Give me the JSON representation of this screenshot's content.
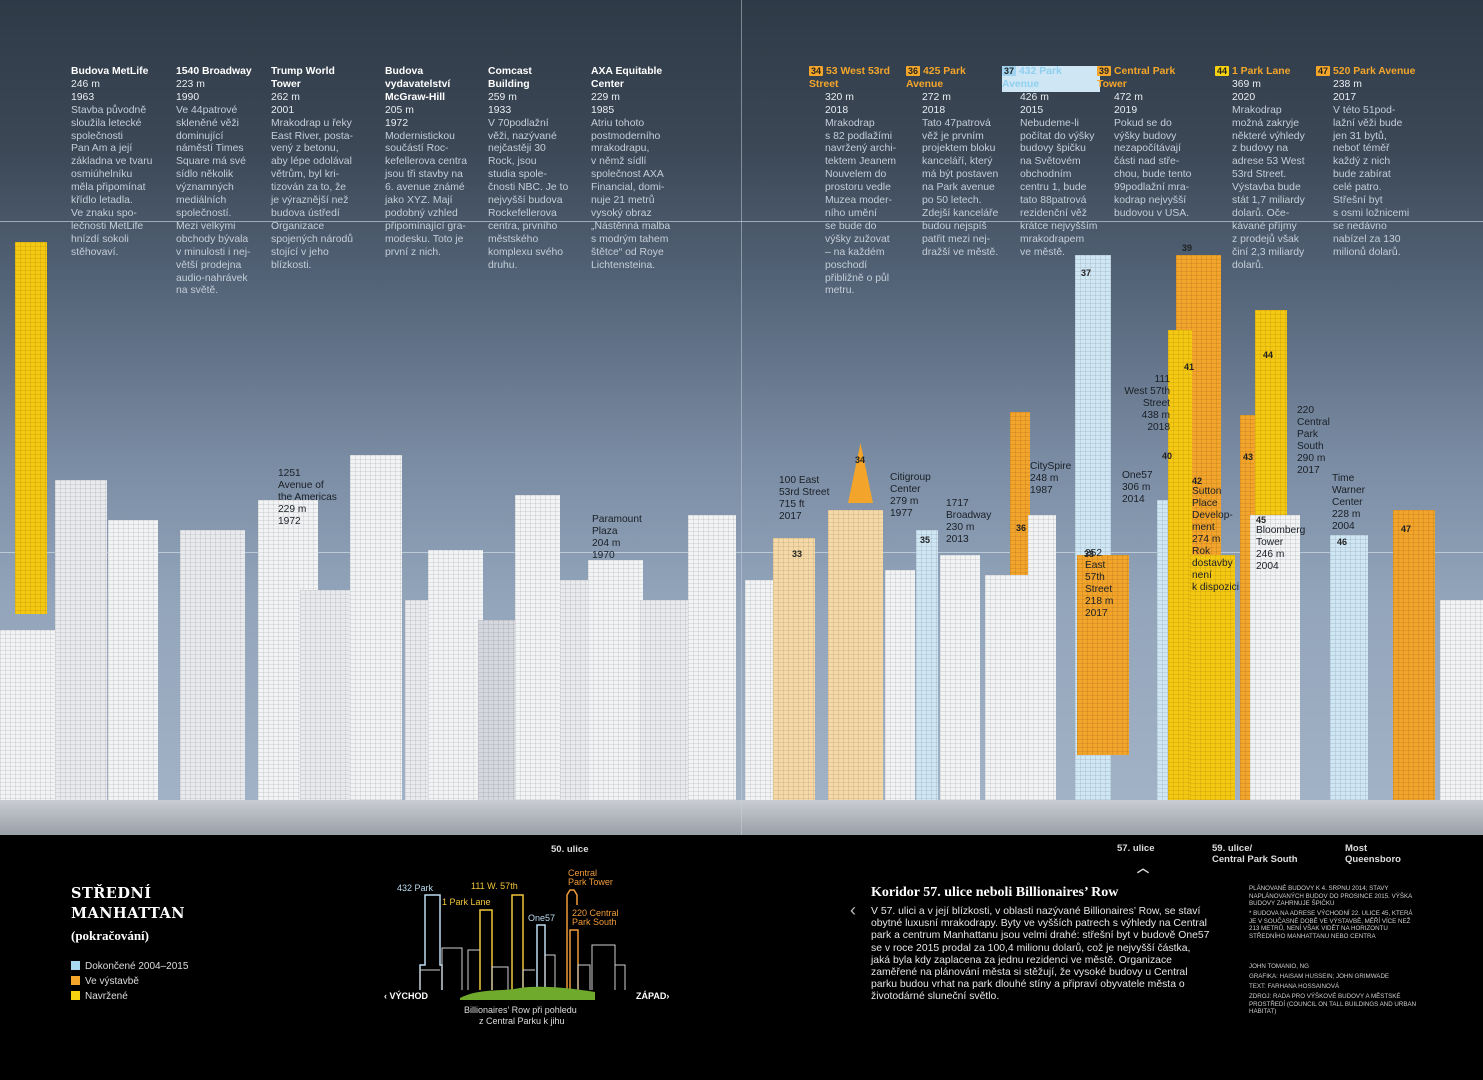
{
  "page": {
    "section_title": [
      "STŘEDNÍ",
      "MANHATTAN"
    ],
    "section_subtitle": "(pokračování)"
  },
  "legend": [
    {
      "label": "Dokončené 2004–2015",
      "color": "#a8d8f0"
    },
    {
      "label": "Ve výstavbě",
      "color": "#f4a62a"
    },
    {
      "label": "Navržené",
      "color": "#f6d10f"
    }
  ],
  "existing_buildings": [
    {
      "name": "Budova MetLife",
      "height": "246 m",
      "year": "1963",
      "text": [
        "Stavba původně",
        "sloužila letecké",
        "společnosti",
        "Pan Am a její",
        "základna ve tvaru",
        "osmiúhelníku",
        "měla připomínat",
        "křídlo letadla.",
        "Ve znaku spo-",
        "lečnosti MetLife",
        "hnízdí sokoli",
        "stěhovaví."
      ]
    },
    {
      "name": "1540 Broadway",
      "height": "223 m",
      "year": "1990",
      "text": [
        "Ve 44patrové",
        "skleněné věži",
        "dominující",
        "náměstí Times",
        "Square má své",
        "sídlo několik",
        "významných",
        "mediálních",
        "společností.",
        "Mezi velkými",
        "obchody bývala",
        "v minulosti i nej-",
        "větší prodejna",
        "audio-nahrávek",
        "na světě."
      ]
    },
    {
      "name": "Trump World Tower",
      "height": "262 m",
      "year": "2001",
      "text": [
        "Mrakodrap u řeky",
        "East River, posta-",
        "vený z betonu,",
        "aby lépe odolával",
        "větrům, byl kri-",
        "tizován za to, že",
        "je výraznější než",
        "budova ústředí",
        "Organizace",
        "spojených národů",
        "stojící v jeho",
        "blízkosti."
      ]
    },
    {
      "name": "Budova vydavatelství McGraw-Hill",
      "height": "205 m",
      "year": "1972",
      "text": [
        "Modernistickou",
        "součástí Roc-",
        "kefellerova centra",
        "jsou tři stavby na",
        "6. avenue známé",
        "jako XYZ. Mají",
        "podobný vzhled",
        "připomínající gra-",
        "modesku. Toto je",
        "první z nich."
      ]
    },
    {
      "name": "Comcast Building",
      "height": "259 m",
      "year": "1933",
      "text": [
        "V 70podlažní",
        "věži, nazývané",
        "nejčastěji 30",
        "Rock, jsou",
        "studia spole-",
        "čnosti NBC. Je to",
        "nejvyšší budova",
        "Rockefellerova",
        "centra, prvního",
        "městského",
        "komplexu svého",
        "druhu."
      ]
    },
    {
      "name": "AXA Equitable Center",
      "height": "229 m",
      "year": "1985",
      "text": [
        "Atriu tohoto",
        "postmoderního",
        "mrakodrapu,",
        "v němž sídlí",
        "společnost AXA",
        "Financial, domi-",
        "nuje 21 metrů",
        "vysoký obraz",
        "„Nástěnná malba",
        "s modrým tahem",
        "štětce“ od Roye",
        "Lichtensteina."
      ]
    }
  ],
  "new_buildings": [
    {
      "num": "34",
      "status": "construction",
      "name": "53 West 53rd Street",
      "height": "320 m",
      "year": "2018",
      "text": [
        "Mrakodrap",
        "s 82 podlažími",
        "navržený archi-",
        "tektem Jeanem",
        "Nouvelem do",
        "prostoru vedle",
        "Muzea moder-",
        "ního umění",
        "se bude do",
        "výšky zužovat",
        "– na každém",
        "poschodí",
        "přibližně o půl",
        "metru."
      ]
    },
    {
      "num": "36",
      "status": "construction",
      "name": "425 Park Avenue",
      "height": "272 m",
      "year": "2018",
      "text": [
        "Tato 47patrová",
        "věž je prvním",
        "projektem bloku",
        "kanceláří, který",
        "má být postaven",
        "na Park avenue",
        "po 50 letech.",
        "Zdejší kanceláře",
        "budou nejspíš",
        "patřit mezi nej-",
        "dražší ve městě."
      ]
    },
    {
      "num": "37",
      "status": "completed",
      "name": "432 Park Avenue",
      "height": "426 m",
      "year": "2015",
      "text": [
        "Nebudeme-li",
        "počítat do výšky",
        "budovy špičku",
        "na Světovém",
        "obchodním",
        "centru 1, bude",
        "tato 88patrová",
        "rezidenční věž",
        "krátce nejvyšším",
        "mrakodrapem",
        "ve městě."
      ]
    },
    {
      "num": "39",
      "status": "construction",
      "name": "Central Park Tower",
      "height": "472 m",
      "year": "2019",
      "text": [
        "Pokud se do",
        "výšky budovy",
        "nezapočítávají",
        "části nad stře-",
        "chou, bude tento",
        "99podlažní mra-",
        "kodrap nejvyšší",
        "budovou v USA."
      ]
    },
    {
      "num": "44",
      "status": "proposed",
      "name": "1 Park Lane",
      "height": "369 m",
      "year": "2020",
      "text": [
        "Mrakodrap",
        "možná zakryje",
        "některé výhledy",
        "z budovy na",
        "adrese 53 West",
        "53rd Street.",
        "Výstavba bude",
        "stát 1,7 miliardy",
        "dolarů. Oče-",
        "kávané příjmy",
        "z prodejů však",
        "činí 2,3 miliardy",
        "dolarů."
      ]
    },
    {
      "num": "47",
      "status": "construction",
      "name": "520 Park Avenue",
      "height": "238 m",
      "year": "2017",
      "text": [
        "V této 51pod-",
        "lažní věži bude",
        "jen 31 bytů,",
        "neboť téměř",
        "každý z nich",
        "bude zabírat",
        "celé patro.",
        "Střešní byt",
        "s osmi ložnicemi",
        "se nedávno",
        "nabízel za 130",
        "milionů dolarů."
      ]
    }
  ],
  "skyline_labels": {
    "ave_americas": [
      "1251",
      "Avenue of",
      "the Americas",
      "229 m",
      "1972"
    ],
    "paramount": [
      "Paramount",
      "Plaza",
      "204 m",
      "1970"
    ],
    "east53": [
      "100 East",
      "53rd Street",
      "715 ft",
      "2017"
    ],
    "citigroup": [
      "Citigroup",
      "Center",
      "279 m",
      "1977"
    ],
    "broadway1717": [
      "1717",
      "Broadway",
      "230 m",
      "2013"
    ],
    "cityspire": [
      "CitySpire",
      "248 m",
      "1987"
    ],
    "east57": [
      "252",
      "East",
      "57th",
      "Street",
      "218 m",
      "2017"
    ],
    "one57": [
      "One57",
      "306 m",
      "2014"
    ],
    "w57": [
      "111",
      "West 57th",
      "Street",
      "438 m",
      "2018"
    ],
    "sutton": [
      "Sutton",
      "Place",
      "Develop-",
      "ment",
      "274 m",
      "Rok",
      "dostavby",
      "není",
      "k dispozici"
    ],
    "cps220": [
      "220",
      "Central",
      "Park",
      "South",
      "290 m",
      "2017"
    ],
    "bloomberg": [
      "Bloomberg",
      "Tower",
      "246 m",
      "2004"
    ],
    "timewarner": [
      "Time",
      "Warner",
      "Center",
      "228 m",
      "2004"
    ]
  },
  "numbers": [
    "33",
    "34",
    "35",
    "36",
    "37",
    "38",
    "39",
    "40",
    "41",
    "42",
    "43",
    "44",
    "45",
    "46",
    "47"
  ],
  "streets": {
    "s50": "50. ulice",
    "s57": "57. ulice",
    "s59": [
      "59. ulice/",
      "Central Park South"
    ],
    "bridge": [
      "Most",
      "Queensboro"
    ]
  },
  "inset": {
    "labels": {
      "p432": "432 Park",
      "lane1": "1 Park Lane",
      "w111": "111 W. 57th",
      "one57": "One57",
      "cpt": [
        "Central",
        "Park Tower"
      ],
      "cps": [
        "220 Central",
        "Park South"
      ]
    },
    "east": "‹ VÝCHOD",
    "west": "ZÁPAD›",
    "caption": [
      "Billionaires’ Row při pohledu",
      "z Central Parku k jihu"
    ]
  },
  "koridor": {
    "heading": "Koridor 57. ulice neboli Billionaires’ Row",
    "body": "V 57. ulici a v její blízkosti, v oblasti nazývané Billionaires’ Row, se staví obytné luxusní mrakodrapy. Byty ve vyšších patrech s výhledy na Central park a centrum Manhattanu jsou velmi drahé: střešní byt v budově One57 se v roce 2015 prodal za 100,4 milionu dolarů, což je nejvyšší částka, jaká byla kdy zaplacena za jednu rezidenci ve městě. Organizace zaměřené na plánování města si stěžují, že vysoké budovy u Central parku budou vrhat na park dlouhé stíny a připraví obyvatele města o životodárné sluneční světlo."
  },
  "credits": {
    "note1": "Plánované budovy k 4. srpnu 2014; stavy naplánovaných budov do prosince 2015. Výška budovy zahrnuje špičku",
    "note2": "* Budova na adrese Východní 22. ulice 45, která je v současné době ve výstavbě, měří více než 213 metrů, není však vidět na horizontu středního Manhattanu nebo centra",
    "author": "John Tomanio, NG",
    "graphics": "Grafika: Haisam Hussein; John Grimwade",
    "text": "Text: Farhana Hossainová",
    "source": "Zdroj: Rada pro výškové budovy a městské prostředí (Council on Tall Buildings and Urban Habitat)"
  },
  "colors": {
    "completed": "#cfe6f4",
    "construction": "#f3a42a",
    "proposed": "#f5c812",
    "sky_top": "#2f3a47",
    "sky_bottom": "#a4b4c8"
  }
}
